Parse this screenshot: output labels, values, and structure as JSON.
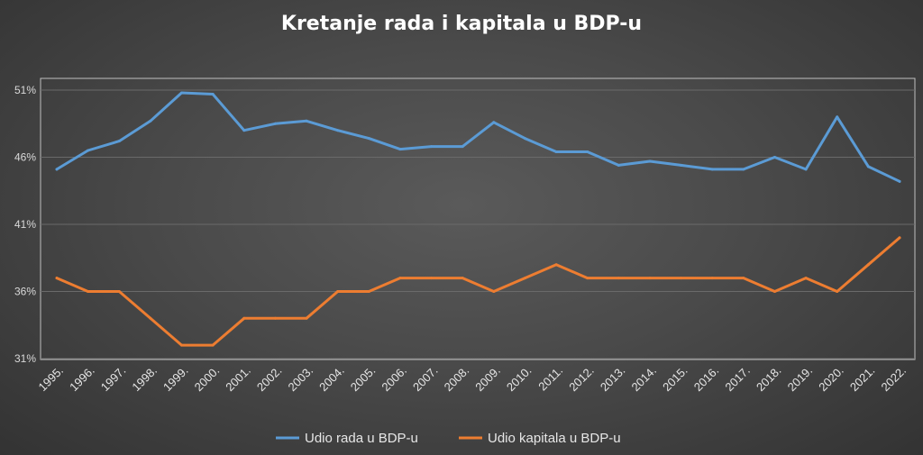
{
  "chart_data": {
    "type": "line",
    "title": "Kretanje rada i kapitala u BDP-u",
    "xlabel": "",
    "ylabel": "",
    "ylim": [
      31,
      51
    ],
    "yticks": [
      "31%",
      "36%",
      "41%",
      "46%",
      "51%"
    ],
    "ytick_values": [
      31,
      36,
      41,
      46,
      51
    ],
    "categories": [
      "1995.",
      "1996.",
      "1997.",
      "1998.",
      "1999.",
      "2000.",
      "2001.",
      "2002.",
      "2003.",
      "2004.",
      "2005.",
      "2006.",
      "2007.",
      "2008.",
      "2009.",
      "2010.",
      "2011.",
      "2012.",
      "2013.",
      "2014.",
      "2015.",
      "2016.",
      "2017.",
      "2018.",
      "2019.",
      "2020.",
      "2021.",
      "2022."
    ],
    "grid": true,
    "legend": "bottom",
    "series": [
      {
        "name": "Udio rada u BDP-u",
        "color": "#5b9bd5",
        "values": [
          45.1,
          46.5,
          47.2,
          48.7,
          50.8,
          50.7,
          48.0,
          48.5,
          48.7,
          48.0,
          47.4,
          46.6,
          46.8,
          46.8,
          48.6,
          47.4,
          46.4,
          46.4,
          45.4,
          45.7,
          45.4,
          45.1,
          45.1,
          46.0,
          45.1,
          49.0,
          45.3,
          44.2
        ]
      },
      {
        "name": "Udio kapitala u BDP-u",
        "color": "#ed7d31",
        "values": [
          37.0,
          36.0,
          36.0,
          34.0,
          32.0,
          32.0,
          34.0,
          34.0,
          34.0,
          36.0,
          36.0,
          37.0,
          37.0,
          37.0,
          36.0,
          37.0,
          38.0,
          37.0,
          37.0,
          37.0,
          37.0,
          37.0,
          37.0,
          36.0,
          37.0,
          36.0,
          38.0,
          40.0
        ]
      }
    ]
  }
}
